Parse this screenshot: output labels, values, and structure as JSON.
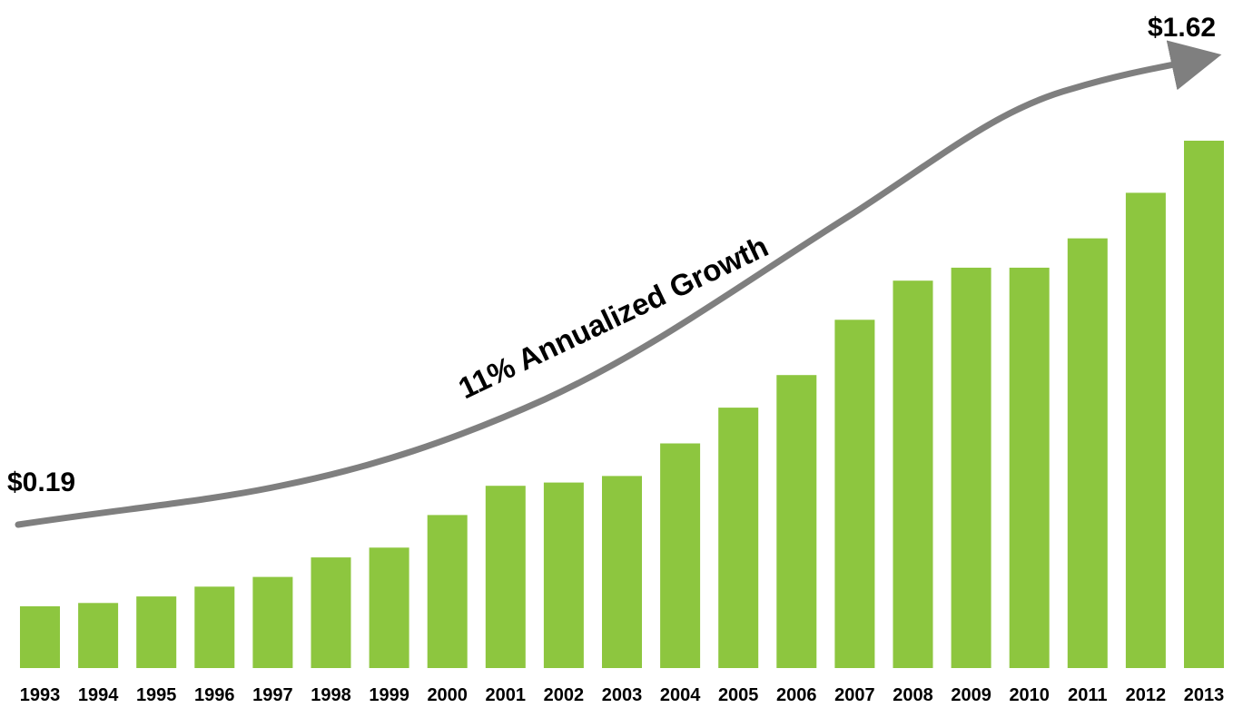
{
  "chart_data": {
    "type": "bar",
    "title": "",
    "xlabel": "",
    "ylabel": "",
    "categories": [
      "1993",
      "1994",
      "1995",
      "1996",
      "1997",
      "1998",
      "1999",
      "2000",
      "2001",
      "2002",
      "2003",
      "2004",
      "2005",
      "2006",
      "2007",
      "2008",
      "2009",
      "2010",
      "2011",
      "2012",
      "2013"
    ],
    "values": [
      0.19,
      0.2,
      0.22,
      0.25,
      0.28,
      0.34,
      0.37,
      0.47,
      0.56,
      0.57,
      0.59,
      0.69,
      0.8,
      0.9,
      1.07,
      1.19,
      1.23,
      1.23,
      1.32,
      1.46,
      1.62
    ],
    "ylim": [
      0,
      1.62
    ],
    "grid": false,
    "legend": "none",
    "bar_color": "#8dc63f",
    "trend_arrow_color": "#7f7f7f",
    "annotations": {
      "start_value": "$0.19",
      "end_value": "$1.62",
      "growth_label": "11% Annualized Growth"
    }
  }
}
